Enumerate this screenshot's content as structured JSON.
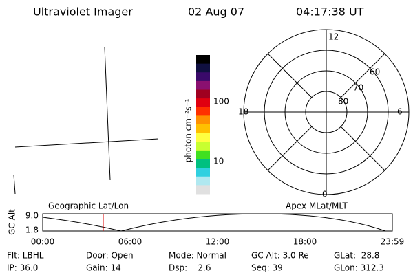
{
  "header": {
    "title": "Ultraviolet Imager",
    "date": "02 Aug 07",
    "time": "04:17:38 UT"
  },
  "colorbar": {
    "label": "photon cm⁻²s⁻¹",
    "ticks": [
      "100",
      "10"
    ]
  },
  "polar": {
    "mlt_labels": [
      "12",
      "18",
      "6",
      "0"
    ],
    "lat_labels": [
      "60",
      "70",
      "80"
    ]
  },
  "orbit": {
    "left_title": "Geographic Lat/Lon",
    "right_title": "Apex MLat/MLT",
    "y_label": "GC Alt",
    "y_ticks": [
      "9.0",
      "1.8"
    ],
    "x_ticks": [
      "00:00",
      "06:00",
      "12:00",
      "18:00",
      "23:59"
    ]
  },
  "status": {
    "rows": [
      [
        "Flt: LBHL",
        "Door: Open",
        "Mode: Normal",
        "GC Alt: 3.0 Re",
        "GLat:  28.8"
      ],
      [
        "IP: 36.0",
        "Gain: 14",
        "Dsp:    2.6",
        "Seq: 39",
        "GLon: 312.3"
      ]
    ]
  }
}
